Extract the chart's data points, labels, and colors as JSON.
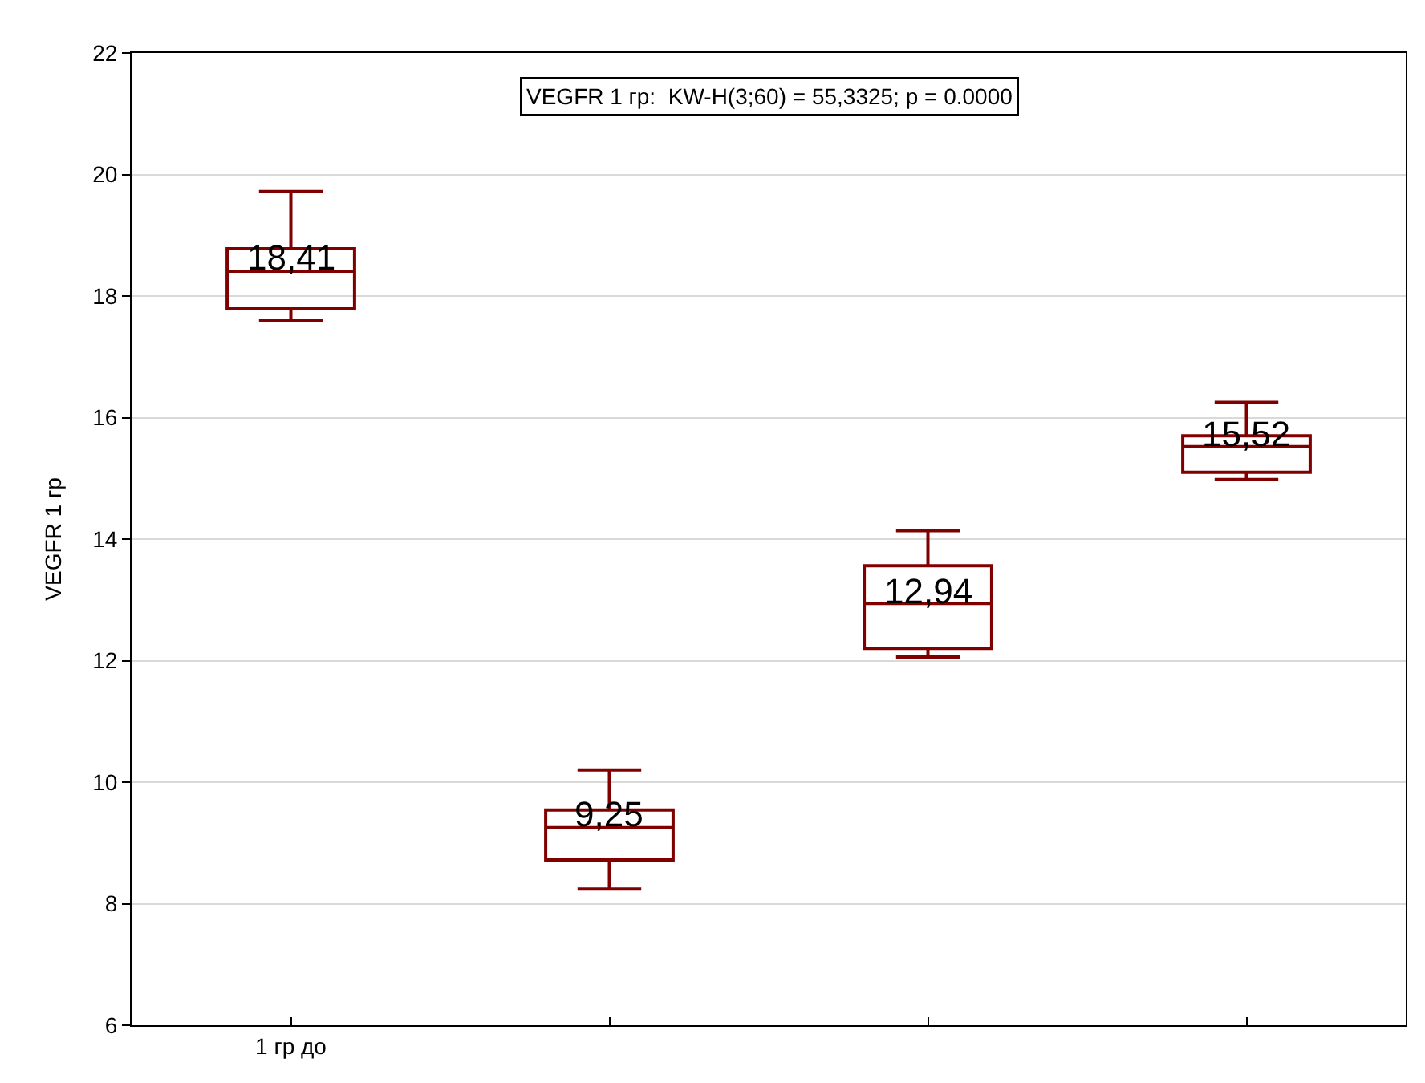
{
  "chart_data": {
    "type": "box",
    "ylabel": "VEGFR 1 гр",
    "annotations": [
      "VEGFR 1 гр:  KW-H(3;60) = 55,3325; p = 0.0000"
    ],
    "categories": [
      "1 гр до",
      null,
      null,
      null
    ],
    "color": "#800000",
    "boxes": [
      {
        "low": 17.59,
        "q1": 17.79,
        "median": 18.41,
        "q3": 18.78,
        "high": 19.72
      },
      {
        "low": 8.24,
        "q1": 8.72,
        "median": 9.25,
        "q3": 9.54,
        "high": 10.2
      },
      {
        "low": 12.06,
        "q1": 12.2,
        "median": 12.94,
        "q3": 13.56,
        "high": 14.14
      },
      {
        "low": 14.98,
        "q1": 15.1,
        "median": 15.52,
        "q3": 15.7,
        "high": 16.25
      }
    ],
    "value_labels": [
      "18,41",
      "9,25",
      "12,94",
      "15,52"
    ],
    "ylim": [
      6,
      22
    ],
    "yticks": [
      6,
      8,
      10,
      12,
      14,
      16,
      18,
      20,
      22
    ],
    "grid": "y"
  }
}
